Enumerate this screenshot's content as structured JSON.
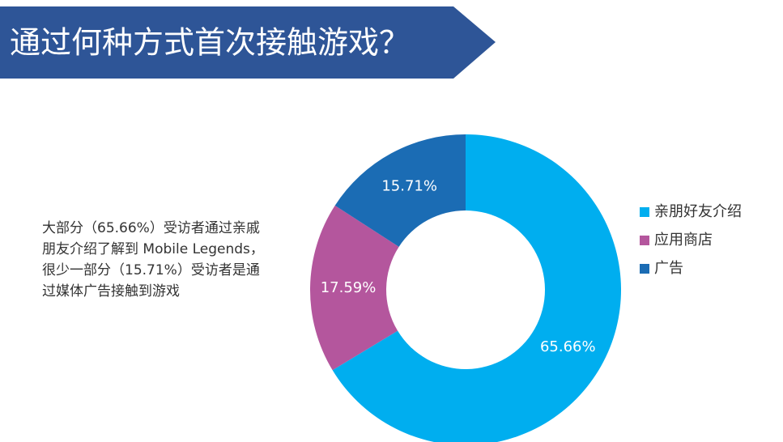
{
  "chart_data": {
    "type": "pie",
    "donut": true,
    "title": "通过何种方式首次接触游戏？",
    "annotation": [
      "大部分（65.66%）受访者通过亲戚",
      "朋友介绍了解到 Mobile Legends，",
      "很少一部分（15.71%）受访者是通",
      "过媒体广告接触到游戏"
    ],
    "categories": [
      "亲朋好友介绍",
      "应用商店",
      "广告"
    ],
    "values": [
      65.66,
      17.59,
      15.71
    ],
    "value_labels": [
      "65.66%",
      "17.59%",
      "15.71%"
    ],
    "colors": [
      "#00aeef",
      "#b4569d",
      "#1b6cb4"
    ]
  }
}
